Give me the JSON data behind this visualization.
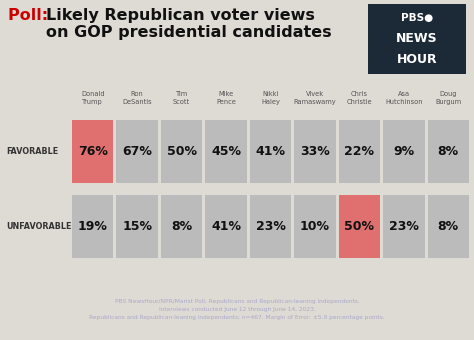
{
  "title_poll": "Poll: ",
  "title_main": "Likely Republican voter views\non GOP presidential candidates",
  "candidates": [
    "Donald\nTrump",
    "Ron\nDeSantis",
    "Tim\nScott",
    "Mike\nPence",
    "Nikki\nHaley",
    "Vivek\nRamaswamy",
    "Chris\nChristie",
    "Asa\nHutchinson",
    "Doug\nBurgum"
  ],
  "favorable": [
    76,
    67,
    50,
    45,
    41,
    33,
    22,
    9,
    8
  ],
  "unfavorable": [
    19,
    15,
    8,
    41,
    23,
    10,
    50,
    23,
    8
  ],
  "favorable_highlight": [
    0
  ],
  "unfavorable_highlight": [
    6
  ],
  "highlight_color": "#e07070",
  "column_color": "#bbbbbb",
  "bg_color": "#dedad4",
  "footer_bg": "#1c2a38",
  "footer_text": "PBS NewsHour/NPR/Marist Poll, Republicans and Republican-leaning independents.\nInterviews conducted June 12 through June 14, 2023.\nRepublicans and Republican-leaning independents: n=467. Margin of Error: ±5.9 percentage points.",
  "label_favorable": "FAVORABLE",
  "label_unfavorable": "UNFAVORABLE",
  "title_color_poll": "#cc0000",
  "title_color_main": "#111111",
  "logo_bg": "#1c2a38",
  "logo_line1": "PBS●",
  "logo_line2": "NEWS",
  "logo_line3": "HOUR"
}
